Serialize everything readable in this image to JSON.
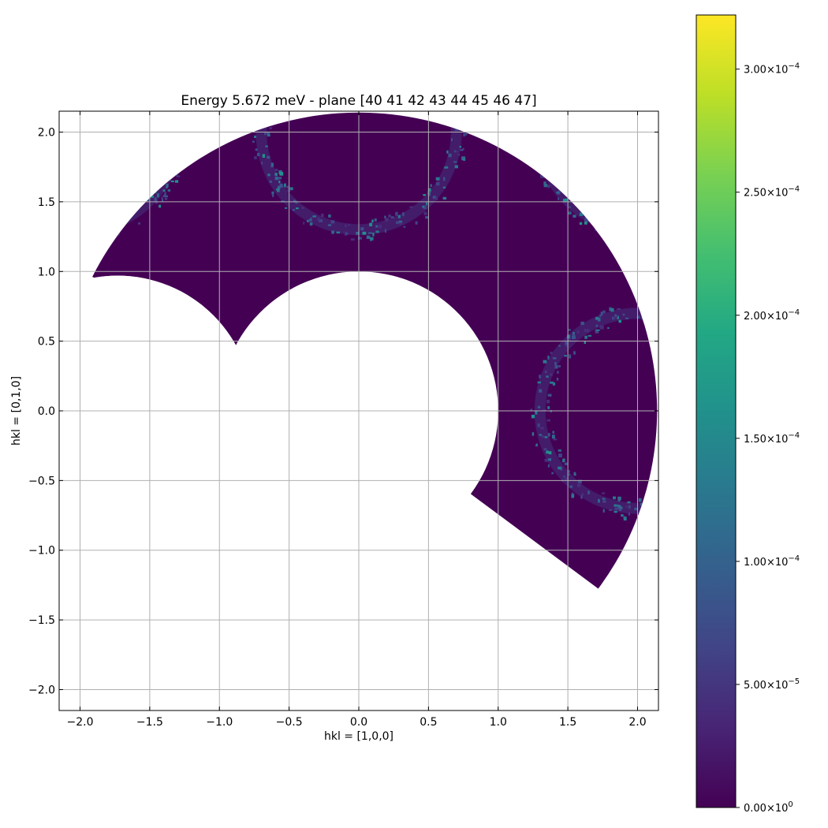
{
  "chart_data": {
    "type": "heatmap",
    "title": "Energy 5.672 meV - plane [40 41 42 43 44 45 46 47]",
    "xlabel": "hkl = [1,0,0]",
    "ylabel": "hkl = [0,1,0]",
    "xlim": [
      -2.15,
      2.15
    ],
    "ylim": [
      -2.15,
      2.15
    ],
    "xticks": [
      -2.0,
      -1.5,
      -1.0,
      -0.5,
      0.0,
      0.5,
      1.0,
      1.5,
      2.0
    ],
    "xtick_labels": [
      "−2.0",
      "−1.5",
      "−1.0",
      "−0.5",
      "0.0",
      "0.5",
      "1.0",
      "1.5",
      "2.0"
    ],
    "yticks": [
      2.0,
      1.5,
      1.0,
      0.5,
      0.0,
      -0.5,
      -1.0,
      -1.5,
      -2.0
    ],
    "ytick_labels": [
      "2.0",
      "1.5",
      "1.0",
      "0.5",
      "0.0",
      "−0.5",
      "−1.0",
      "−1.5",
      "−2.0"
    ],
    "grid": true,
    "colormap": "viridis",
    "background_value": 0,
    "coverage": {
      "outer_radius": 2.14,
      "inner_radius": 1.0,
      "secondary_hole_center": [
        -1.73,
        0.0
      ],
      "secondary_hole_radius": 0.97,
      "angle_range_deg": [
        -36.6,
        153.3
      ]
    },
    "features": [
      {
        "name": "ring-top",
        "center": [
          0.0,
          2.0
        ],
        "radius": 0.7,
        "value": 6e-05
      },
      {
        "name": "ring-right",
        "center": [
          2.0,
          0.0
        ],
        "radius": 0.7,
        "value": 6e-05
      },
      {
        "name": "ring-top-left",
        "center": [
          -2.0,
          2.0
        ],
        "radius": 0.7,
        "value": 6e-05
      },
      {
        "name": "ring-top-right",
        "center": [
          2.0,
          2.0
        ],
        "radius": 0.7,
        "value": 6e-05
      }
    ],
    "colorbar": {
      "min": 0,
      "max": 0.000322,
      "ticks": [
        0,
        5e-05,
        0.0001,
        0.00015,
        0.0002,
        0.00025,
        0.0003
      ],
      "tick_labels": [
        [
          "0.00",
          "0"
        ],
        [
          "5.00",
          "−5"
        ],
        [
          "1.00",
          "−4"
        ],
        [
          "1.50",
          "−4"
        ],
        [
          "2.00",
          "−4"
        ],
        [
          "2.50",
          "−4"
        ],
        [
          "3.00",
          "−4"
        ]
      ],
      "tick_label_mid": "×10"
    }
  }
}
